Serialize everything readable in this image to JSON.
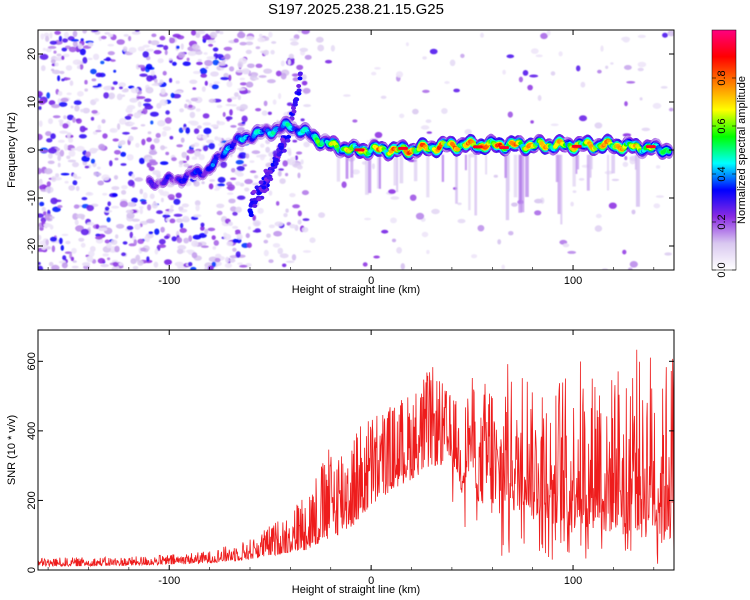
{
  "title": "S197.2025.238.21.15.G25",
  "chart_data": [
    {
      "type": "heatmap",
      "xlabel": "Height of straight line (km)",
      "ylabel": "Frequency (Hz)",
      "xlim": [
        -165,
        150
      ],
      "ylim": [
        -25,
        25
      ],
      "xticks": [
        -100,
        0,
        100
      ],
      "yticks": [
        20,
        10,
        0,
        -10,
        -20
      ],
      "colorbar": {
        "label": "Normalized spectral amplitude",
        "range": [
          0.0,
          1.0
        ],
        "ticks": [
          0.0,
          0.2,
          0.4,
          0.6,
          0.8
        ],
        "tick_labels": [
          "0.0",
          "0.2",
          "0.4",
          "0.6",
          "0.8"
        ],
        "colors": [
          "#ffffff",
          "#d9c8f0",
          "#8a2be2",
          "#0000ff",
          "#00ffff",
          "#00ff00",
          "#ffff00",
          "#ff8000",
          "#ff0000",
          "#ff0080"
        ]
      },
      "signal_track": {
        "x": [
          -110,
          -95,
          -80,
          -70,
          -60,
          -50,
          -40,
          -35,
          -30,
          -20,
          -10,
          0,
          20,
          40,
          60,
          80,
          100,
          120,
          148
        ],
        "freq": [
          -7,
          -6,
          -4,
          1,
          3,
          4,
          5,
          4,
          3,
          1,
          0,
          0,
          0,
          1,
          1,
          1,
          1,
          1,
          0
        ],
        "amplitude": [
          0.3,
          0.35,
          0.4,
          0.45,
          0.5,
          0.5,
          0.55,
          0.5,
          0.6,
          0.7,
          0.75,
          0.8,
          0.9,
          0.85,
          0.9,
          0.85,
          0.8,
          0.9,
          0.6
        ]
      },
      "branch_track": {
        "x": [
          -60,
          -50,
          -40,
          -35
        ],
        "freq": [
          -12,
          -5,
          5,
          15
        ]
      }
    },
    {
      "type": "line",
      "xlabel": "Height of straight line (km)",
      "ylabel": "SNR (10 * v/v)",
      "xlim": [
        -165,
        150
      ],
      "ylim": [
        0,
        690
      ],
      "xticks": [
        -100,
        0,
        100
      ],
      "yticks": [
        0,
        200,
        400,
        600
      ],
      "line_color": "#ee1c1c",
      "envelope": {
        "x": [
          -165,
          -120,
          -100,
          -80,
          -60,
          -40,
          -30,
          -20,
          -10,
          0,
          10,
          20,
          30,
          40,
          50,
          60,
          70,
          80,
          90,
          100,
          110,
          120,
          130,
          140,
          150
        ],
        "baseline": [
          10,
          12,
          15,
          20,
          30,
          50,
          60,
          90,
          120,
          180,
          230,
          260,
          300,
          300,
          280,
          160,
          200,
          180,
          150,
          130,
          130,
          120,
          120,
          100,
          80
        ],
        "peak": [
          35,
          38,
          45,
          55,
          90,
          170,
          260,
          360,
          400,
          460,
          480,
          520,
          590,
          500,
          560,
          600,
          600,
          620,
          580,
          600,
          650,
          600,
          690,
          650,
          670
        ]
      }
    }
  ]
}
